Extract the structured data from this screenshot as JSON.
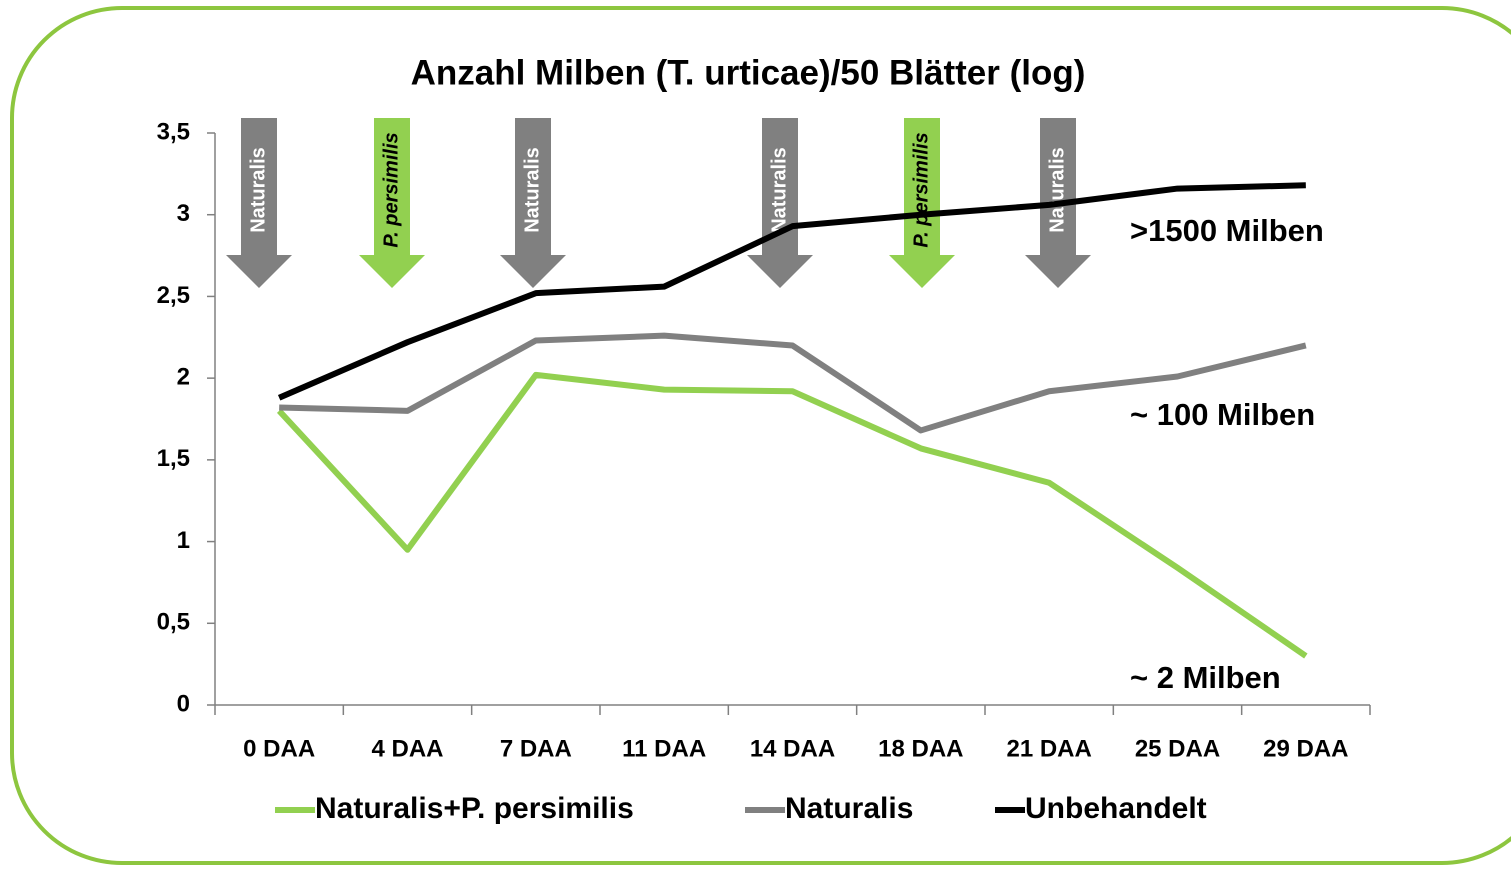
{
  "chart_data": {
    "type": "line",
    "title": "Anzahl Milben (T. urticae)/50 Blätter (log)",
    "categories": [
      "0 DAA",
      "4 DAA",
      "7 DAA",
      "11 DAA",
      "14 DAA",
      "18 DAA",
      "21 DAA",
      "25 DAA",
      "29 DAA"
    ],
    "series": [
      {
        "name": "Naturalis+P. persimilis",
        "color": "#92d050",
        "values": [
          1.8,
          0.95,
          2.02,
          1.93,
          1.92,
          1.57,
          1.36,
          0.84,
          0.3
        ]
      },
      {
        "name": "Naturalis",
        "color": "#808080",
        "values": [
          1.82,
          1.8,
          2.23,
          2.26,
          2.2,
          1.68,
          1.92,
          2.01,
          2.2
        ]
      },
      {
        "name": "Unbehandelt",
        "color": "#000000",
        "values": [
          1.88,
          2.22,
          2.52,
          2.56,
          2.93,
          3.0,
          3.06,
          3.16,
          3.18
        ]
      }
    ],
    "ylim": [
      0,
      3.5
    ],
    "yticks": [
      0,
      {
        "value": 0.5,
        "label": "0,5"
      },
      1,
      {
        "value": 1.5,
        "label": "1,5"
      },
      2,
      {
        "value": 2.5,
        "label": "2,5"
      },
      3,
      {
        "value": 3.5,
        "label": "3,5"
      }
    ],
    "arrows": [
      {
        "label": "Naturalis",
        "color": "#808080"
      },
      {
        "label": "P. persimilis",
        "color": "#92d050"
      },
      {
        "label": "Naturalis",
        "color": "#808080"
      },
      {
        "label": "Naturalis",
        "color": "#808080"
      },
      {
        "label": "P. persimilis",
        "color": "#92d050"
      },
      {
        "label": "Naturalis",
        "color": "#808080"
      }
    ],
    "annotations": [
      ">1500 Milben",
      "~ 100 Milben",
      "~ 2 Milben"
    ],
    "legend": "bottom"
  }
}
